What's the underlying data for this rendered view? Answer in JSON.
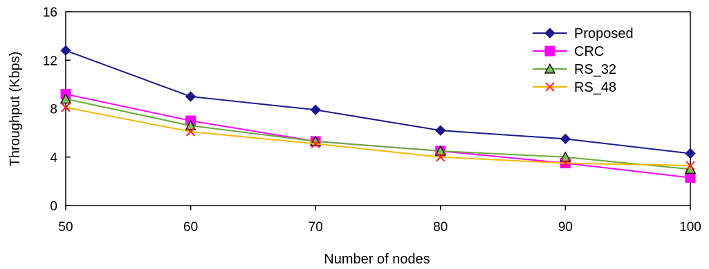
{
  "chart_data": {
    "type": "line",
    "xlabel": "Number of nodes",
    "ylabel": "Throughput (Kbps)",
    "x": [
      50,
      60,
      70,
      80,
      90,
      100
    ],
    "xlim": [
      50,
      100
    ],
    "ylim": [
      0,
      16
    ],
    "xticks": [
      "50",
      "60",
      "70",
      "80",
      "90",
      "100"
    ],
    "yticks": [
      "0",
      "4",
      "8",
      "12",
      "16"
    ],
    "grid": false,
    "legend_position": "top-right",
    "series": [
      {
        "name": "Proposed",
        "values": [
          12.8,
          9.0,
          7.9,
          6.2,
          5.5,
          4.3
        ],
        "color": "#1a1a8c",
        "marker": "diamond"
      },
      {
        "name": "CRC",
        "values": [
          9.2,
          7.0,
          5.3,
          4.5,
          3.5,
          2.3
        ],
        "color": "#ff00ff",
        "marker": "square"
      },
      {
        "name": "RS_32",
        "values": [
          8.8,
          6.6,
          5.3,
          4.5,
          4.0,
          3.0
        ],
        "color": "#6aaa3a",
        "marker": "triangle"
      },
      {
        "name": "RS_48",
        "values": [
          8.1,
          6.1,
          5.1,
          4.0,
          3.5,
          3.3
        ],
        "color": "#f5b800",
        "marker": "x"
      }
    ]
  }
}
